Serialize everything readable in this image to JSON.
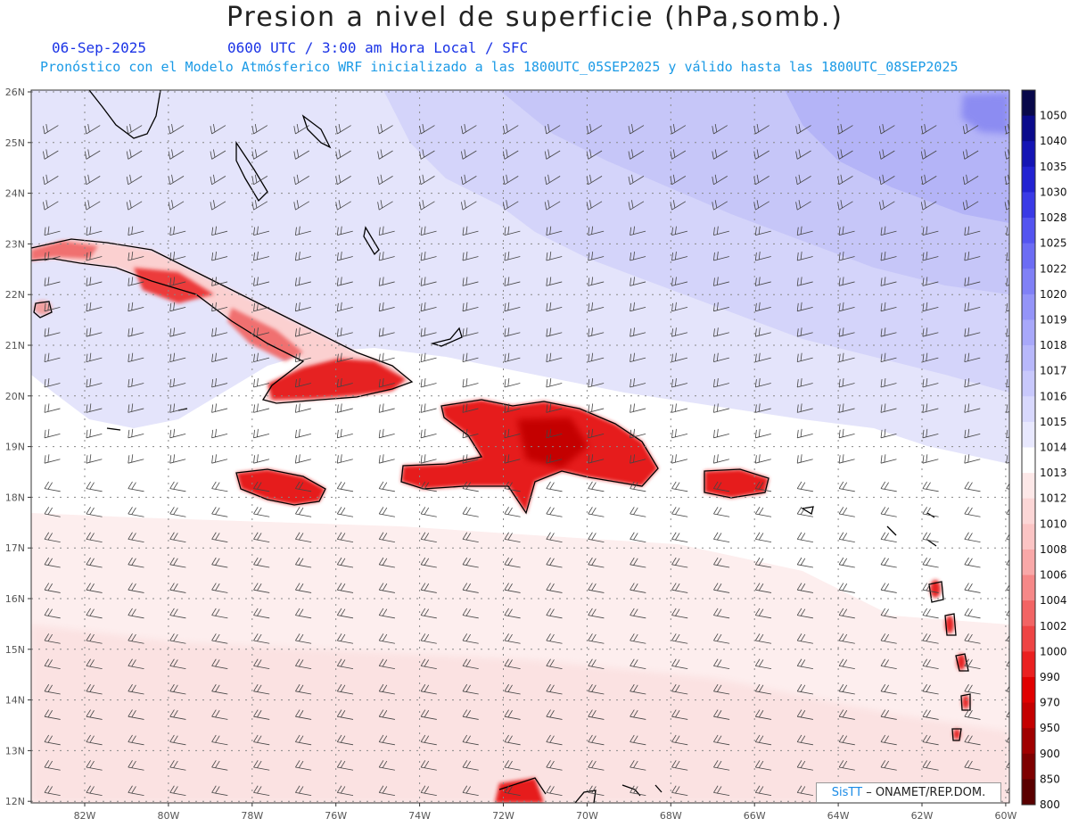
{
  "title": "Presion a nivel de superficie (hPa,somb.)",
  "date": "06-Sep-2025",
  "time_line": "0600 UTC / 3:00 am Hora Local / SFC",
  "model_line": "Pronóstico con el Modelo Atmósferico WRF inicializado a las 1800UTC_05SEP2025 y válido hasta las  1800UTC_08SEP2025",
  "lon_labels": [
    "82W",
    "80W",
    "78W",
    "76W",
    "74W",
    "72W",
    "70W",
    "68W",
    "66W",
    "64W",
    "62W",
    "60W"
  ],
  "lat_labels": [
    "26N",
    "25N",
    "24N",
    "23N",
    "22N",
    "21N",
    "20N",
    "19N",
    "18N",
    "17N",
    "16N",
    "15N",
    "14N",
    "13N",
    "12N"
  ],
  "colorbar": {
    "levels": [
      "1050",
      "1040",
      "1035",
      "1030",
      "1028",
      "1025",
      "1022",
      "1020",
      "1019",
      "1018",
      "1017",
      "1016",
      "1015",
      "1014",
      "1013",
      "1012",
      "1010",
      "1008",
      "1006",
      "1004",
      "1002",
      "1000",
      "990",
      "970",
      "950",
      "900",
      "850",
      "800"
    ],
    "colors": [
      "#08084a",
      "#0a0a8c",
      "#1414b4",
      "#2222d2",
      "#3a3ae6",
      "#5454f0",
      "#6c6cf4",
      "#8080f6",
      "#9494f8",
      "#a8a8fa",
      "#b8b8fb",
      "#c8c8fc",
      "#d8d8fd",
      "#e8e8fe",
      "#ffffff",
      "#fde8e8",
      "#fcd6d6",
      "#fbc4c4",
      "#f9a8a8",
      "#f68888",
      "#f26464",
      "#ee4444",
      "#ea2020",
      "#e00000",
      "#c40000",
      "#a00000",
      "#7e0000",
      "#5a0000"
    ]
  },
  "credit": {
    "brand": "SisTT",
    "text": " – ONAMET/REP.DOM."
  }
}
